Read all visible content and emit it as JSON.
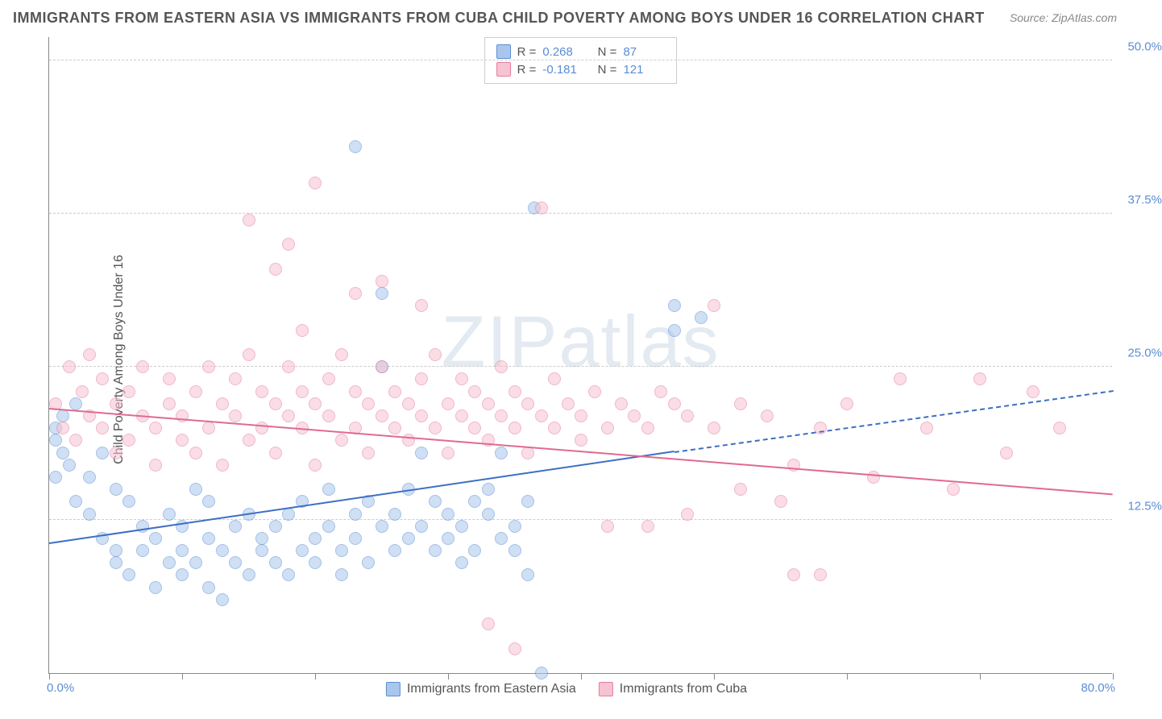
{
  "title": "IMMIGRANTS FROM EASTERN ASIA VS IMMIGRANTS FROM CUBA CHILD POVERTY AMONG BOYS UNDER 16 CORRELATION CHART",
  "source": "Source: ZipAtlas.com",
  "ylabel": "Child Poverty Among Boys Under 16",
  "watermark": "ZIPatlas",
  "chart": {
    "type": "scatter",
    "xlim": [
      0,
      80
    ],
    "ylim": [
      0,
      52
    ],
    "ytick_values": [
      12.5,
      25.0,
      37.5,
      50.0
    ],
    "ytick_labels": [
      "12.5%",
      "25.0%",
      "37.5%",
      "50.0%"
    ],
    "xmin_label": "0.0%",
    "xmax_label": "80.0%",
    "xtick_positions": [
      0,
      10,
      20,
      30,
      40,
      50,
      60,
      70,
      80
    ],
    "grid_color": "#cccccc",
    "background_color": "#ffffff",
    "marker_radius": 8,
    "marker_opacity": 0.55,
    "series": [
      {
        "name": "Immigrants from Eastern Asia",
        "color_fill": "#a9c6ec",
        "color_stroke": "#5b8dd6",
        "R": "0.268",
        "N": "87",
        "trend": {
          "x1": 0,
          "y1": 10.5,
          "x2": 47,
          "y2": 18.0,
          "dash_to_x": 80,
          "dash_to_y": 23.0,
          "color": "#3d6fc4"
        },
        "points": [
          [
            0.5,
            16
          ],
          [
            0.5,
            19
          ],
          [
            0.5,
            20
          ],
          [
            1,
            18
          ],
          [
            1,
            21
          ],
          [
            1.5,
            17
          ],
          [
            2,
            22
          ],
          [
            2,
            14
          ],
          [
            3,
            16
          ],
          [
            3,
            13
          ],
          [
            4,
            18
          ],
          [
            4,
            11
          ],
          [
            5,
            15
          ],
          [
            5,
            10
          ],
          [
            5,
            9
          ],
          [
            6,
            14
          ],
          [
            6,
            8
          ],
          [
            7,
            12
          ],
          [
            7,
            10
          ],
          [
            8,
            11
          ],
          [
            8,
            7
          ],
          [
            9,
            13
          ],
          [
            9,
            9
          ],
          [
            10,
            10
          ],
          [
            10,
            12
          ],
          [
            10,
            8
          ],
          [
            11,
            15
          ],
          [
            11,
            9
          ],
          [
            12,
            11
          ],
          [
            12,
            7
          ],
          [
            12,
            14
          ],
          [
            13,
            10
          ],
          [
            13,
            6
          ],
          [
            14,
            12
          ],
          [
            14,
            9
          ],
          [
            15,
            13
          ],
          [
            15,
            8
          ],
          [
            16,
            11
          ],
          [
            16,
            10
          ],
          [
            17,
            9
          ],
          [
            17,
            12
          ],
          [
            18,
            13
          ],
          [
            18,
            8
          ],
          [
            19,
            10
          ],
          [
            19,
            14
          ],
          [
            20,
            11
          ],
          [
            20,
            9
          ],
          [
            21,
            12
          ],
          [
            21,
            15
          ],
          [
            22,
            10
          ],
          [
            22,
            8
          ],
          [
            23,
            13
          ],
          [
            23,
            11
          ],
          [
            24,
            14
          ],
          [
            24,
            9
          ],
          [
            25,
            12
          ],
          [
            25,
            25
          ],
          [
            25,
            31
          ],
          [
            26,
            10
          ],
          [
            26,
            13
          ],
          [
            27,
            11
          ],
          [
            27,
            15
          ],
          [
            28,
            12
          ],
          [
            28,
            18
          ],
          [
            29,
            10
          ],
          [
            29,
            14
          ],
          [
            30,
            13
          ],
          [
            30,
            11
          ],
          [
            31,
            12
          ],
          [
            31,
            9
          ],
          [
            32,
            14
          ],
          [
            32,
            10
          ],
          [
            33,
            13
          ],
          [
            33,
            15
          ],
          [
            34,
            18
          ],
          [
            34,
            11
          ],
          [
            35,
            12
          ],
          [
            35,
            10
          ],
          [
            36,
            14
          ],
          [
            36,
            8
          ],
          [
            36.5,
            38
          ],
          [
            23,
            43
          ],
          [
            37,
            0
          ],
          [
            47,
            28
          ],
          [
            47,
            30
          ],
          [
            49,
            29
          ]
        ]
      },
      {
        "name": "Immigrants from Cuba",
        "color_fill": "#f6c3d1",
        "color_stroke": "#e87ba0",
        "R": "-0.181",
        "N": "121",
        "trend": {
          "x1": 0,
          "y1": 21.5,
          "x2": 80,
          "y2": 14.5,
          "color": "#e06a92"
        },
        "points": [
          [
            0.5,
            22
          ],
          [
            1,
            20
          ],
          [
            1.5,
            25
          ],
          [
            2,
            19
          ],
          [
            2.5,
            23
          ],
          [
            3,
            21
          ],
          [
            3,
            26
          ],
          [
            4,
            20
          ],
          [
            4,
            24
          ],
          [
            5,
            22
          ],
          [
            5,
            18
          ],
          [
            6,
            23
          ],
          [
            6,
            19
          ],
          [
            7,
            21
          ],
          [
            7,
            25
          ],
          [
            8,
            20
          ],
          [
            8,
            17
          ],
          [
            9,
            22
          ],
          [
            9,
            24
          ],
          [
            10,
            19
          ],
          [
            10,
            21
          ],
          [
            11,
            23
          ],
          [
            11,
            18
          ],
          [
            12,
            20
          ],
          [
            12,
            25
          ],
          [
            13,
            22
          ],
          [
            13,
            17
          ],
          [
            14,
            21
          ],
          [
            14,
            24
          ],
          [
            15,
            19
          ],
          [
            15,
            26
          ],
          [
            15,
            37
          ],
          [
            16,
            20
          ],
          [
            16,
            23
          ],
          [
            17,
            33
          ],
          [
            17,
            22
          ],
          [
            17,
            18
          ],
          [
            18,
            21
          ],
          [
            18,
            35
          ],
          [
            18,
            25
          ],
          [
            19,
            28
          ],
          [
            19,
            20
          ],
          [
            19,
            23
          ],
          [
            20,
            22
          ],
          [
            20,
            40
          ],
          [
            20,
            17
          ],
          [
            21,
            21
          ],
          [
            21,
            24
          ],
          [
            22,
            19
          ],
          [
            22,
            26
          ],
          [
            23,
            20
          ],
          [
            23,
            31
          ],
          [
            23,
            23
          ],
          [
            24,
            22
          ],
          [
            24,
            18
          ],
          [
            25,
            21
          ],
          [
            25,
            32
          ],
          [
            25,
            25
          ],
          [
            26,
            20
          ],
          [
            26,
            23
          ],
          [
            27,
            22
          ],
          [
            27,
            19
          ],
          [
            28,
            30
          ],
          [
            28,
            21
          ],
          [
            28,
            24
          ],
          [
            29,
            20
          ],
          [
            29,
            26
          ],
          [
            30,
            22
          ],
          [
            30,
            18
          ],
          [
            31,
            21
          ],
          [
            31,
            24
          ],
          [
            32,
            20
          ],
          [
            32,
            23
          ],
          [
            33,
            22
          ],
          [
            33,
            4
          ],
          [
            33,
            19
          ],
          [
            34,
            21
          ],
          [
            34,
            25
          ],
          [
            35,
            20
          ],
          [
            35,
            2
          ],
          [
            35,
            23
          ],
          [
            36,
            22
          ],
          [
            36,
            18
          ],
          [
            37,
            21
          ],
          [
            37,
            38
          ],
          [
            38,
            20
          ],
          [
            38,
            24
          ],
          [
            39,
            22
          ],
          [
            40,
            21
          ],
          [
            40,
            19
          ],
          [
            41,
            23
          ],
          [
            42,
            20
          ],
          [
            42,
            12
          ],
          [
            43,
            22
          ],
          [
            44,
            21
          ],
          [
            45,
            20
          ],
          [
            45,
            12
          ],
          [
            46,
            23
          ],
          [
            47,
            22
          ],
          [
            48,
            13
          ],
          [
            48,
            21
          ],
          [
            50,
            20
          ],
          [
            50,
            30
          ],
          [
            52,
            22
          ],
          [
            52,
            15
          ],
          [
            54,
            21
          ],
          [
            55,
            14
          ],
          [
            56,
            8
          ],
          [
            56,
            17
          ],
          [
            58,
            20
          ],
          [
            58,
            8
          ],
          [
            60,
            22
          ],
          [
            62,
            16
          ],
          [
            64,
            24
          ],
          [
            66,
            20
          ],
          [
            68,
            15
          ],
          [
            70,
            24
          ],
          [
            72,
            18
          ],
          [
            74,
            23
          ],
          [
            76,
            20
          ]
        ]
      }
    ]
  },
  "legend": {
    "series1": "Immigrants from Eastern Asia",
    "series2": "Immigrants from Cuba"
  }
}
